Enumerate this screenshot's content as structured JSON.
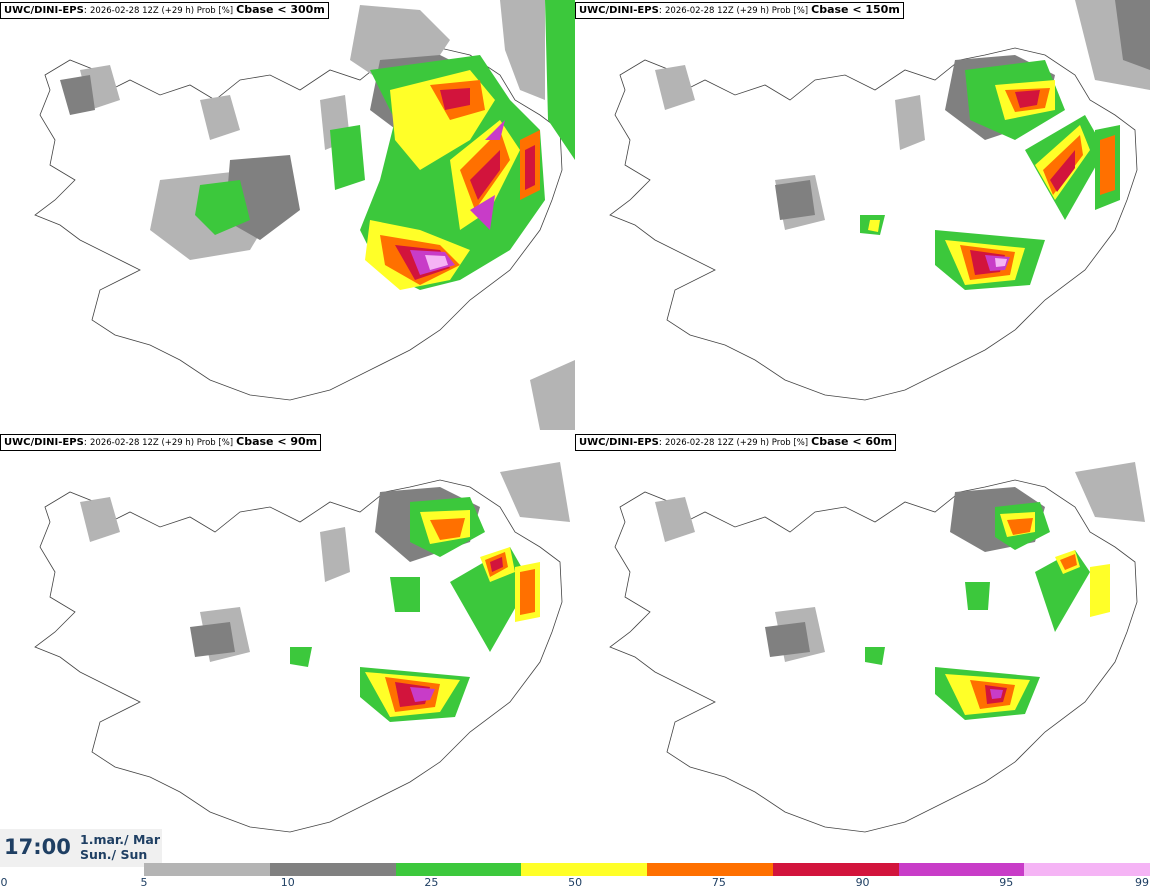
{
  "panels": [
    {
      "model": "UWC/DINI-EPS",
      "run": "2026-02-28 12Z (+29 h) Prob [%]",
      "variable": "Cbase < 300m"
    },
    {
      "model": "UWC/DINI-EPS",
      "run": "2026-02-28 12Z (+29 h) Prob [%]",
      "variable": "Cbase < 150m"
    },
    {
      "model": "UWC/DINI-EPS",
      "run": "2026-02-28 12Z (+29 h) Prob [%]",
      "variable": "Cbase < 90m"
    },
    {
      "model": "UWC/DINI-EPS",
      "run": "2026-02-28 12Z (+29 h) Prob [%]",
      "variable": "Cbase < 60m"
    }
  ],
  "time": {
    "clock": "17:00",
    "date_line1": "1.mar./ Mar",
    "date_line2": "Sun./ Sun"
  },
  "colorbar": {
    "ticks": [
      "0",
      "5",
      "10",
      "25",
      "50",
      "75",
      "90",
      "95",
      "99"
    ],
    "colors": [
      "#b4b4b4",
      "#808080",
      "#3cc83c",
      "#ffff28",
      "#ff7000",
      "#d2143c",
      "#c83cc8",
      "#f5b4f5"
    ]
  }
}
